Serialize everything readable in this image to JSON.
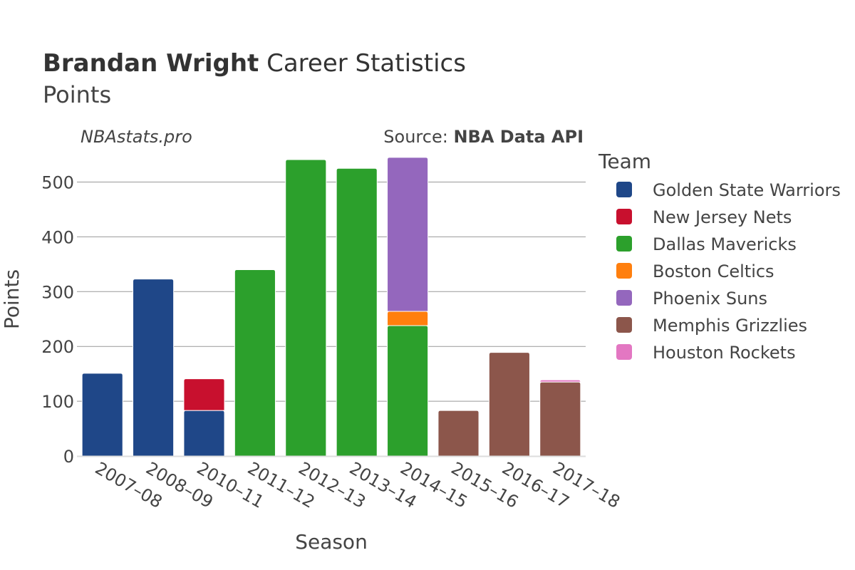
{
  "title": {
    "bold": "Brandan Wright",
    "rest": " Career Statistics"
  },
  "subtitle": "Points",
  "watermark": "NBAstats.pro",
  "source": {
    "prefix": "Source: ",
    "name": "NBA Data API"
  },
  "chart_data": {
    "type": "bar",
    "stacked": true,
    "xlabel": "Season",
    "ylabel": "Points",
    "ylim": [
      0,
      550
    ],
    "yticks": [
      0,
      100,
      200,
      300,
      400,
      500
    ],
    "grid": true,
    "legend": {
      "title": "Team",
      "placement": "right"
    },
    "categories": [
      "2007–08",
      "2008–09",
      "2010–11",
      "2011–12",
      "2012–13",
      "2013–14",
      "2014–15",
      "2015–16",
      "2016–17",
      "2017–18"
    ],
    "series": [
      {
        "name": "Golden State Warriors",
        "color": "#1f4788",
        "values": [
          151,
          323,
          83,
          0,
          0,
          0,
          0,
          0,
          0,
          0
        ]
      },
      {
        "name": "New Jersey Nets",
        "color": "#c8102e",
        "values": [
          0,
          0,
          58,
          0,
          0,
          0,
          0,
          0,
          0,
          0
        ]
      },
      {
        "name": "Dallas Mavericks",
        "color": "#2ca02c",
        "values": [
          0,
          0,
          0,
          340,
          541,
          525,
          238,
          0,
          0,
          0
        ]
      },
      {
        "name": "Boston Celtics",
        "color": "#ff7f0e",
        "values": [
          0,
          0,
          0,
          0,
          0,
          0,
          26,
          0,
          0,
          0
        ]
      },
      {
        "name": "Phoenix Suns",
        "color": "#9467bd",
        "values": [
          0,
          0,
          0,
          0,
          0,
          0,
          281,
          0,
          0,
          0
        ]
      },
      {
        "name": "Memphis Grizzlies",
        "color": "#8c564b",
        "values": [
          0,
          0,
          0,
          0,
          0,
          0,
          0,
          83,
          189,
          135
        ]
      },
      {
        "name": "Houston Rockets",
        "color": "#e377c2",
        "values": [
          0,
          0,
          0,
          0,
          0,
          0,
          0,
          0,
          0,
          4
        ]
      }
    ]
  }
}
